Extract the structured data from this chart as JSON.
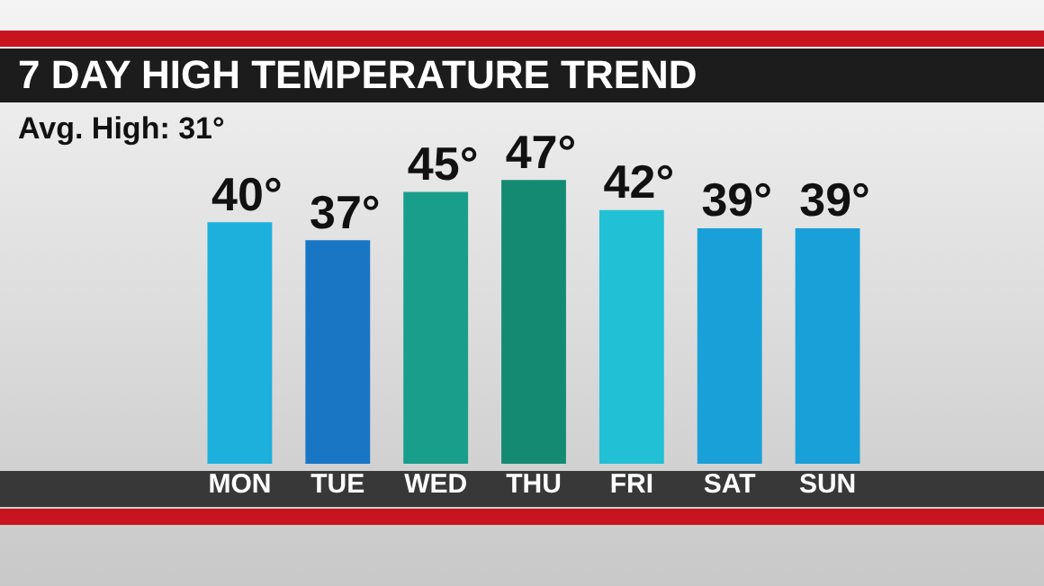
{
  "chart_data": {
    "type": "bar",
    "title": "7 DAY HIGH TEMPERATURE TREND",
    "annotations": [
      "Avg. High: 31°"
    ],
    "categories": [
      "MON",
      "TUE",
      "WED",
      "THU",
      "FRI",
      "SAT",
      "SUN"
    ],
    "values": [
      40,
      37,
      45,
      47,
      42,
      39,
      39
    ],
    "colors": [
      "#1db0dc",
      "#1876c4",
      "#1a9e8c",
      "#148a72",
      "#22c0d4",
      "#1aa0d8",
      "#1aa0d8"
    ],
    "value_labels": [
      "40°",
      "37°",
      "45°",
      "47°",
      "42°",
      "39°",
      "39°"
    ],
    "grid": false,
    "legend": false
  }
}
